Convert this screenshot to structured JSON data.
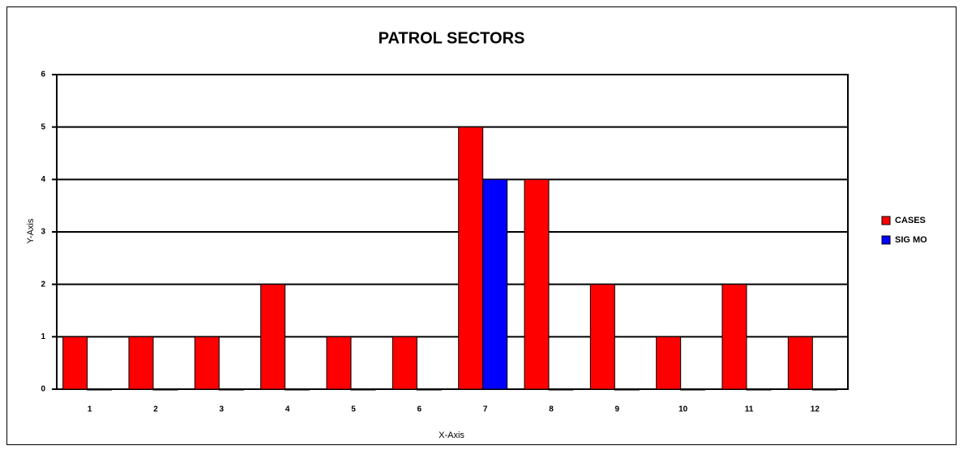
{
  "chart_data": {
    "type": "bar",
    "title": "PATROL SECTORS",
    "x_label": "X-Axis",
    "y_label": "Y-Axis",
    "categories": [
      "1",
      "2",
      "3",
      "4",
      "5",
      "6",
      "7",
      "8",
      "9",
      "10",
      "11",
      "12"
    ],
    "series": [
      {
        "name": "CASES",
        "color": "#ff0000",
        "values": [
          1,
          1,
          1,
          2,
          1,
          1,
          5,
          4,
          2,
          1,
          2,
          1
        ]
      },
      {
        "name": "SIG MO",
        "color": "#0000ff",
        "values": [
          0,
          0,
          0,
          0,
          0,
          0,
          4,
          0,
          0,
          0,
          0,
          0
        ]
      }
    ],
    "ylim": [
      0,
      6
    ],
    "yticks": [
      0,
      1,
      2,
      3,
      4,
      5,
      6
    ],
    "grid": true,
    "legend": "right"
  }
}
